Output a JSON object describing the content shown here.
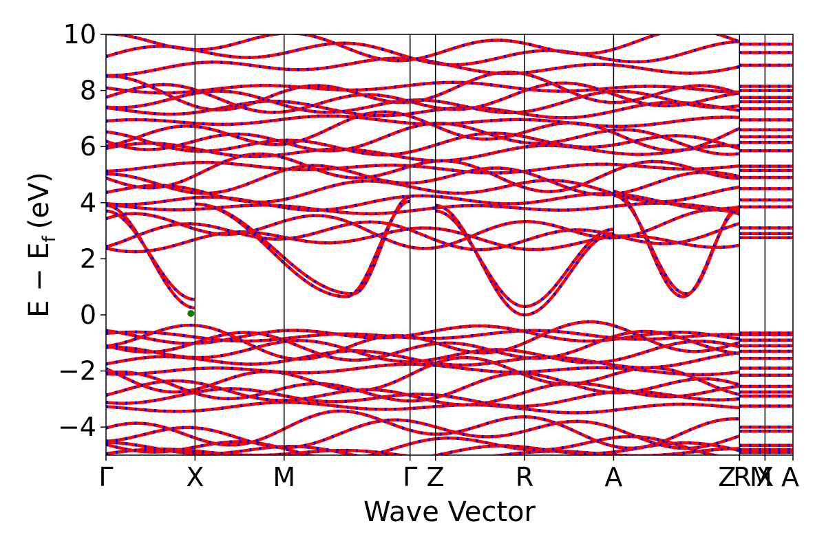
{
  "chart_data": {
    "type": "line",
    "xlabel": "Wave Vector",
    "ylabel": "E − E",
    "ylabel_subscript": "f",
    "ylabel_unit": "(eV)",
    "ylim": [
      -5,
      10
    ],
    "yticks": [
      -4,
      -2,
      0,
      2,
      4,
      6,
      8,
      10
    ],
    "ytick_labels": [
      "−4",
      "−2",
      "0",
      "2",
      "4",
      "6",
      "8",
      "10"
    ],
    "grid": false,
    "legend": "none",
    "kpath": {
      "labels": [
        "Γ",
        "X",
        "M",
        "Γ",
        "Z",
        "R",
        "A",
        "Z",
        "R",
        "X",
        "M",
        "A"
      ],
      "positions": [
        0,
        0.1296,
        0.2593,
        0.4426,
        0.4796,
        0.6093,
        0.7389,
        0.9222,
        0.9222,
        0.9593,
        0.9593,
        1.0
      ],
      "vlines": [
        0.1296,
        0.2593,
        0.4426,
        0.4796,
        0.6093,
        0.7389,
        0.9222,
        0.9593
      ]
    },
    "colors": {
      "spin_up": "#ff0000",
      "spin_down": "#0000ff",
      "vbm_cbm_marker": "#008000",
      "frame": "#000000"
    },
    "band_groups": [
      {
        "kind": "valley",
        "region": "X-M-Γ",
        "start": 3.95,
        "mid": 3.6,
        "end": 4.05,
        "dip_pos": 0.2593,
        "min_pos": 0.35,
        "min": 0.65
      },
      {
        "kind": "valley",
        "region": "X-M-Γ",
        "start": 3.95,
        "mid": 3.85,
        "end": 4.2,
        "dip_pos": 0.2593,
        "min_pos": 0.36,
        "min": 0.75
      },
      {
        "kind": "valley",
        "region": "Γ-X",
        "start": 3.9,
        "mid": 0.25,
        "end": 0.25,
        "dip_pos": 0.1296,
        "min_pos": 0.1296,
        "min": 0.25
      },
      {
        "kind": "valley",
        "region": "Γ-X",
        "start": 3.7,
        "mid": 0.55,
        "end": 0.55,
        "dip_pos": 0.1296,
        "min_pos": 0.1296,
        "min": 0.55
      },
      {
        "kind": "valley",
        "region": "Z-R-A",
        "start": 3.9,
        "mid": 0.0,
        "end": 2.9,
        "dip_pos": 0.6093,
        "min_pos": 0.6093,
        "min": 0.0
      },
      {
        "kind": "valley",
        "region": "Z-R-A",
        "start": 3.7,
        "mid": 0.3,
        "end": 3.05,
        "dip_pos": 0.6093,
        "min_pos": 0.6093,
        "min": 0.3
      },
      {
        "kind": "valley",
        "region": "A-Z",
        "start": 4.4,
        "mid": 3.85,
        "end": 3.75,
        "dip_pos": 0.7389,
        "min_pos": 0.84,
        "min": 0.65
      },
      {
        "kind": "valley",
        "region": "A-Z",
        "start": 4.25,
        "mid": 3.85,
        "end": 3.85,
        "dip_pos": 0.7389,
        "min_pos": 0.845,
        "min": 0.75
      }
    ],
    "flat_bands": [
      -4.95,
      -4.85,
      -4.7,
      -4.2,
      -4.05,
      -3.3,
      -2.95,
      -2.8,
      -2.6,
      -2.2,
      -1.95,
      -1.6,
      -1.35,
      -1.15,
      -0.95,
      -0.75,
      -0.7,
      2.7,
      2.85,
      3.05,
      3.8,
      4.05,
      4.45,
      4.85,
      5.1,
      5.25,
      5.8,
      6.1,
      6.3,
      6.55,
      6.9,
      7.3,
      7.55,
      7.7,
      7.95,
      8.1,
      8.85,
      9.3,
      9.6
    ]
  }
}
